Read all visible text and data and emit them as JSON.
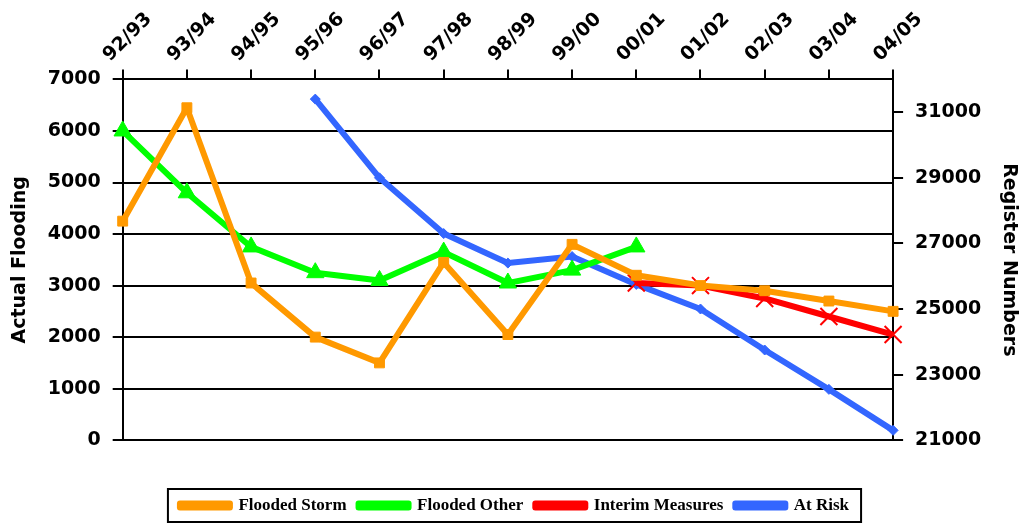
{
  "chart_data": {
    "type": "line",
    "ylabel": "Actual Flooding",
    "y2label": "Register Numbers",
    "categories": [
      "92/93",
      "93/94",
      "94/95",
      "95/96",
      "96/97",
      "97/98",
      "98/99",
      "99/00",
      "00/01",
      "01/02",
      "02/03",
      "03/04",
      "04/05"
    ],
    "series": [
      {
        "name": "Flooded Storm",
        "color": "#ff9900",
        "marker": "square",
        "values": [
          4250,
          6450,
          3050,
          2000,
          1500,
          3450,
          2050,
          3800,
          3200,
          3000,
          2900,
          2700,
          2500
        ]
      },
      {
        "name": "Flooded Other",
        "color": "#00ff00",
        "marker": "triangle",
        "values": [
          6000,
          4800,
          3750,
          3250,
          3100,
          3650,
          3050,
          3300,
          3750,
          null,
          null,
          null,
          null
        ]
      },
      {
        "name": "Interim Measures",
        "color": "#ff0000",
        "marker": "cross",
        "values": [
          null,
          null,
          null,
          null,
          null,
          null,
          null,
          null,
          3050,
          3000,
          2750,
          2400,
          2050
        ]
      },
      {
        "name": "At Risk",
        "color": "#3366ff",
        "marker": "diamond",
        "axis": "y2",
        "values": [
          null,
          null,
          null,
          31400,
          29000,
          27300,
          26400,
          26600,
          25750,
          25000,
          23750,
          22550,
          21300
        ]
      }
    ],
    "ylim": [
      0,
      7000
    ],
    "yticks": [
      0,
      1000,
      2000,
      3000,
      4000,
      5000,
      6000,
      7000
    ],
    "y2lim": [
      21000,
      32000
    ],
    "y2ticks": [
      21000,
      23000,
      25000,
      27000,
      29000,
      31000
    ],
    "grid": "y",
    "legend": "bottom"
  }
}
